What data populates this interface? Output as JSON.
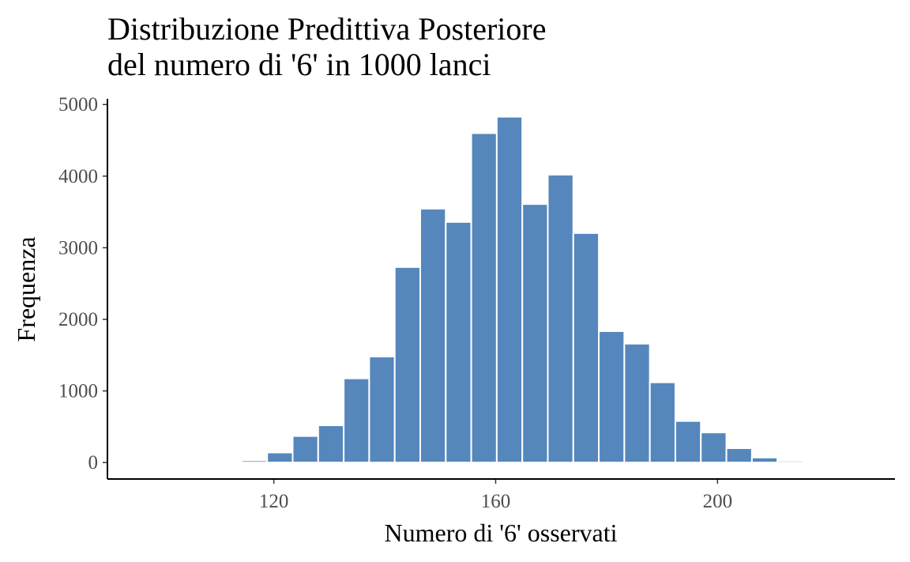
{
  "chart_data": {
    "type": "bar",
    "title_lines": [
      "Distribuzione Predittiva Posteriore",
      "del numero di '6' in 1000 lanci"
    ],
    "xlabel": "Numero di '6' osservati",
    "ylabel": "Frequenza",
    "xlim": [
      90,
      232
    ],
    "ylim": [
      -230,
      5080
    ],
    "x_ticks": [
      120,
      160,
      200
    ],
    "y_ticks": [
      0,
      1000,
      2000,
      3000,
      4000,
      5000
    ],
    "bin_width": 4.6,
    "bar_color": "#5587BC",
    "bar_outline": "#ffffff",
    "bins": [
      {
        "x": 116.5,
        "count": 30
      },
      {
        "x": 121.1,
        "count": 140
      },
      {
        "x": 125.7,
        "count": 370
      },
      {
        "x": 130.3,
        "count": 520
      },
      {
        "x": 134.9,
        "count": 1175
      },
      {
        "x": 139.5,
        "count": 1480
      },
      {
        "x": 144.1,
        "count": 2730
      },
      {
        "x": 148.7,
        "count": 3545
      },
      {
        "x": 153.3,
        "count": 3360
      },
      {
        "x": 157.9,
        "count": 4600
      },
      {
        "x": 162.5,
        "count": 4830
      },
      {
        "x": 167.1,
        "count": 3610
      },
      {
        "x": 171.7,
        "count": 4020
      },
      {
        "x": 176.3,
        "count": 3205
      },
      {
        "x": 180.9,
        "count": 1835
      },
      {
        "x": 185.5,
        "count": 1660
      },
      {
        "x": 190.1,
        "count": 1120
      },
      {
        "x": 194.7,
        "count": 580
      },
      {
        "x": 199.3,
        "count": 420
      },
      {
        "x": 203.9,
        "count": 200
      },
      {
        "x": 208.5,
        "count": 70
      },
      {
        "x": 213.1,
        "count": 25
      }
    ]
  }
}
